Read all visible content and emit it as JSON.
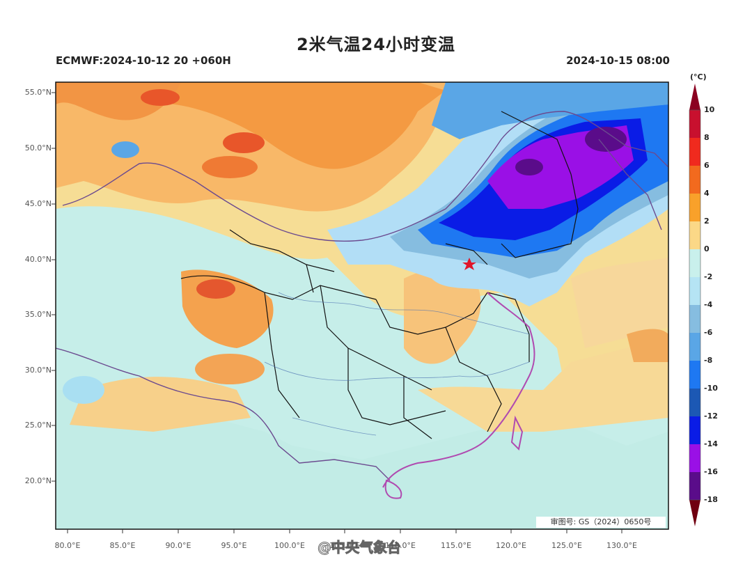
{
  "title": "2米气温24小时变温",
  "model_run": "ECMWF:2024-10-12 20 +060H",
  "valid_time": "2024-10-15 08:00",
  "latitude_labels": [
    "55.0°N",
    "50.0°N",
    "45.0°N",
    "40.0°N",
    "35.0°N",
    "30.0°N",
    "25.0°N",
    "20.0°N"
  ],
  "longitude_labels": [
    "80.0°E",
    "85.0°E",
    "90.0°E",
    "95.0°E",
    "100.0°E",
    "105.0°E",
    "110.0°E",
    "115.0°E",
    "120.0°E",
    "125.0°E",
    "130.0°E"
  ],
  "approval_number": "审图号: GS（2024）0650号",
  "watermark": "@中央气象台",
  "colorbar": {
    "unit": "(°C)",
    "ticks": [
      "10",
      "8",
      "6",
      "4",
      "2",
      "0",
      "-2",
      "-4",
      "-6",
      "-8",
      "-10",
      "-12",
      "-14",
      "-16",
      "-18"
    ],
    "colors": [
      "#8b0020",
      "#c8102e",
      "#f02a1e",
      "#f26a1e",
      "#f9a12a",
      "#fbd887",
      "#c9f0ec",
      "#b5e4f4",
      "#86bde0",
      "#5aa6e6",
      "#1e78f2",
      "#1c58b4",
      "#0a1ce6",
      "#9a10e6",
      "#5a0c8a",
      "#3e0a60",
      "#700010"
    ]
  },
  "legend_min_color": "#700010",
  "legend_max_color": "#8b0020"
}
